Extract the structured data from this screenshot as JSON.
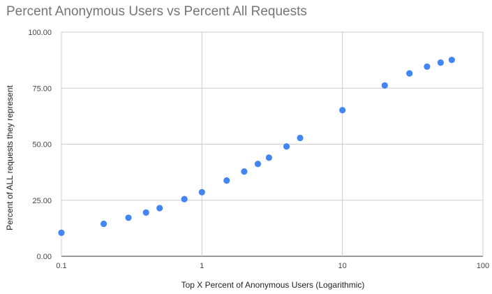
{
  "chart_data": {
    "type": "scatter",
    "title": "Percent Anonymous Users vs Percent All Requests",
    "xlabel": "Top X Percent of Anonymous Users (Logarithmic)",
    "ylabel": "Percent of ALL requests they represent",
    "x_scale": "log",
    "xlim": [
      0.1,
      100
    ],
    "ylim": [
      0,
      100
    ],
    "x_ticks": [
      {
        "value": 0.1,
        "label": "0.1"
      },
      {
        "value": 1,
        "label": "1"
      },
      {
        "value": 10,
        "label": "10"
      },
      {
        "value": 100,
        "label": "100"
      }
    ],
    "y_ticks": [
      {
        "value": 0,
        "label": "0.00"
      },
      {
        "value": 25,
        "label": "25.00"
      },
      {
        "value": 50,
        "label": "50.00"
      },
      {
        "value": 75,
        "label": "75.00"
      },
      {
        "value": 100,
        "label": "100.00"
      }
    ],
    "grid": true,
    "series": [
      {
        "color": "#4285f4",
        "points": [
          {
            "x": 0.1,
            "y": 10.5
          },
          {
            "x": 0.2,
            "y": 14.5
          },
          {
            "x": 0.3,
            "y": 17.2
          },
          {
            "x": 0.4,
            "y": 19.5
          },
          {
            "x": 0.5,
            "y": 21.5
          },
          {
            "x": 0.75,
            "y": 25.5
          },
          {
            "x": 1,
            "y": 28.6
          },
          {
            "x": 1.5,
            "y": 33.8
          },
          {
            "x": 2,
            "y": 37.8
          },
          {
            "x": 2.5,
            "y": 41.2
          },
          {
            "x": 3,
            "y": 44.0
          },
          {
            "x": 4,
            "y": 49.0
          },
          {
            "x": 5,
            "y": 52.8
          },
          {
            "x": 10,
            "y": 65.2
          },
          {
            "x": 20,
            "y": 76.2
          },
          {
            "x": 30,
            "y": 81.6
          },
          {
            "x": 40,
            "y": 84.6
          },
          {
            "x": 50,
            "y": 86.4
          },
          {
            "x": 60,
            "y": 87.6
          }
        ]
      }
    ]
  }
}
